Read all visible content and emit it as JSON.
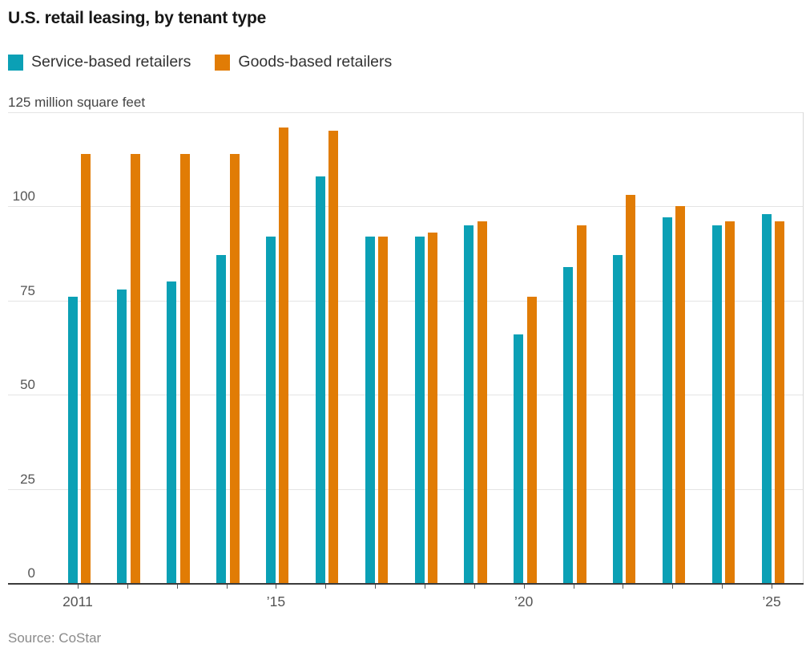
{
  "title": "U.S. retail leasing, by tenant type",
  "unit_label": "125 million square feet",
  "source": "Source: CoStar",
  "colors": {
    "service": "#0BA0B5",
    "goods": "#E17C05",
    "gridline": "#e4e4e4",
    "axis_line": "#3b3b3b",
    "text_dark": "#171717",
    "text_axis": "#555555",
    "text_source": "#8a8a8a"
  },
  "legend": [
    {
      "label": "Service-based retailers",
      "color": "#0BA0B5"
    },
    {
      "label": "Goods-based retailers",
      "color": "#E17C05"
    }
  ],
  "chart_data": {
    "type": "bar",
    "title": "U.S. retail leasing, by tenant type",
    "ylabel": "125 million square feet",
    "ylim": [
      0,
      125
    ],
    "yticks": [
      0,
      25,
      50,
      75,
      100
    ],
    "grid": true,
    "legend_position": "top",
    "categories": [
      2011,
      2012,
      2013,
      2014,
      2015,
      2016,
      2017,
      2018,
      2019,
      2020,
      2021,
      2022,
      2023,
      2024,
      2025
    ],
    "xtick_labels": [
      {
        "index": 0,
        "text": "2011"
      },
      {
        "index": 4,
        "text": "’15"
      },
      {
        "index": 9,
        "text": "’20"
      },
      {
        "index": 14,
        "text": "’25"
      }
    ],
    "series": [
      {
        "name": "Service-based retailers",
        "color": "#0BA0B5",
        "values": [
          76,
          78,
          80,
          87,
          92,
          108,
          92,
          92,
          95,
          66,
          84,
          87,
          97,
          95,
          98
        ]
      },
      {
        "name": "Goods-based retailers",
        "color": "#E17C05",
        "values": [
          114,
          114,
          114,
          114,
          121,
          120,
          92,
          93,
          96,
          76,
          95,
          103,
          100,
          96,
          96
        ]
      }
    ]
  }
}
